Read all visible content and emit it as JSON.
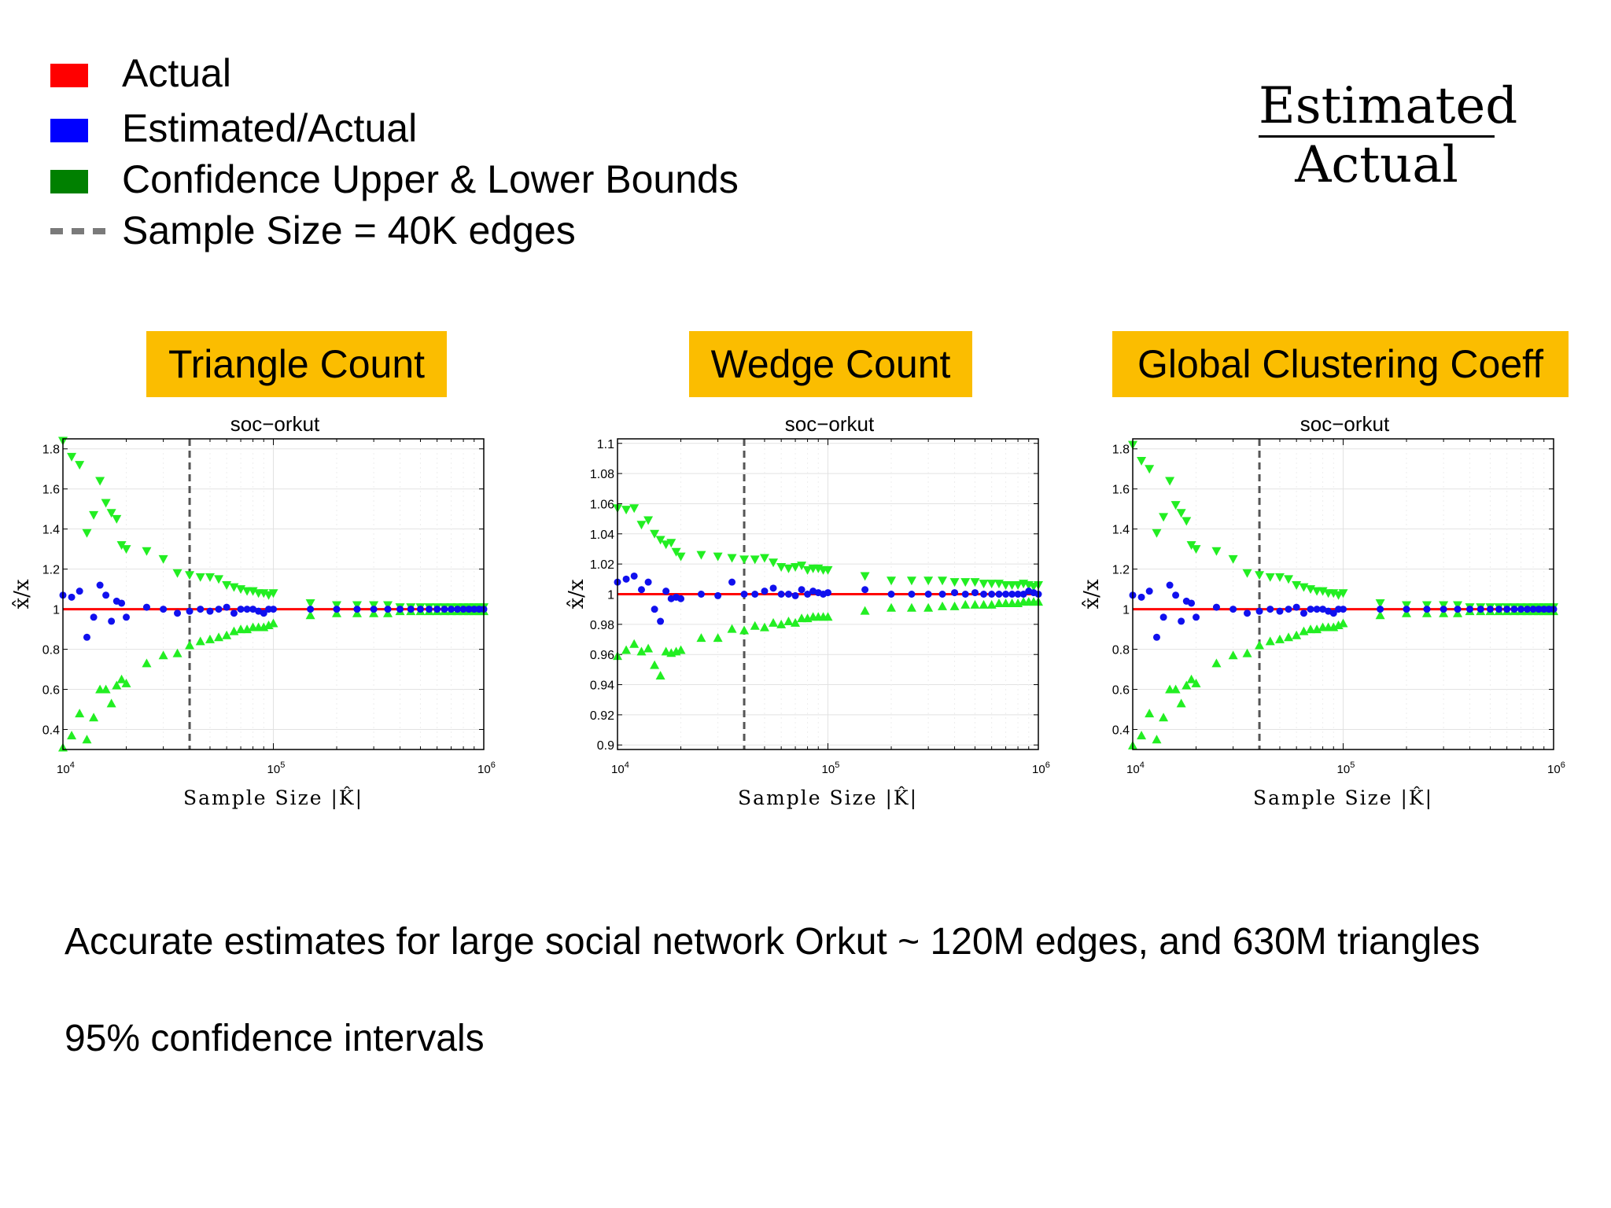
{
  "legend": [
    {
      "label": "Actual",
      "color": "#ff0000",
      "kind": "swatch"
    },
    {
      "label": "Estimated/Actual",
      "color": "#0000ff",
      "kind": "swatch"
    },
    {
      "label": "Confidence Upper & Lower Bounds",
      "color": "#008000",
      "kind": "swatch"
    },
    {
      "label": "Sample Size = 40K edges",
      "color": "#7a7a7a",
      "kind": "dash"
    }
  ],
  "formula": {
    "numerator": "Estimated",
    "denominator": "Actual"
  },
  "panels": [
    {
      "heading": "Triangle Count"
    },
    {
      "heading": "Wedge Count"
    },
    {
      "heading": "Global Clustering Coeff"
    }
  ],
  "footer": {
    "line1": "Accurate estimates for large social network Orkut ~ 120M edges, and 630M triangles",
    "line2": "95% confidence intervals"
  },
  "chart_data": [
    {
      "type": "scatter",
      "title": "soc−orkut",
      "xlabel": "Sample Size |K̂|",
      "ylabel": "x̂/x",
      "xscale": "log",
      "xlim": [
        10000,
        1000000
      ],
      "ylim": [
        0.3,
        1.85
      ],
      "xticks": [
        "10^4",
        "10^5",
        "10^6"
      ],
      "yticks": [
        0.4,
        0.6,
        0.8,
        1,
        1.2,
        1.4,
        1.6,
        1.8
      ],
      "ytick_labels": [
        "0.4",
        "0.6",
        "0.8",
        "1",
        "1.2",
        "1.4",
        "1.6",
        "1.8"
      ],
      "reference_vline": 40000,
      "actual": 1,
      "x": [
        10000,
        11000,
        12000,
        13000,
        14000,
        15000,
        16000,
        17000,
        18000,
        19000,
        20000,
        25000,
        30000,
        35000,
        40000,
        45000,
        50000,
        55000,
        60000,
        65000,
        70000,
        75000,
        80000,
        85000,
        90000,
        95000,
        100000,
        150000,
        200000,
        250000,
        300000,
        350000,
        400000,
        450000,
        500000,
        550000,
        600000,
        650000,
        700000,
        750000,
        800000,
        850000,
        900000,
        950000,
        1000000
      ],
      "estimated": [
        1.07,
        1.06,
        1.09,
        0.86,
        0.96,
        1.12,
        1.07,
        0.94,
        1.04,
        1.03,
        0.96,
        1.01,
        1.0,
        0.98,
        0.99,
        1.0,
        0.99,
        1.0,
        1.01,
        0.98,
        1.0,
        1.0,
        1.0,
        0.99,
        0.98,
        1.0,
        1.0,
        1.0,
        1.0,
        1.0,
        1.0,
        1.0,
        1.0,
        1.0,
        1.0,
        1.0,
        1.0,
        1.0,
        1.0,
        1.0,
        1.0,
        1.0,
        1.0,
        1.0,
        1.0
      ],
      "upper": [
        1.84,
        1.76,
        1.72,
        1.38,
        1.47,
        1.64,
        1.53,
        1.48,
        1.45,
        1.32,
        1.3,
        1.29,
        1.25,
        1.18,
        1.17,
        1.16,
        1.16,
        1.15,
        1.12,
        1.11,
        1.1,
        1.09,
        1.09,
        1.08,
        1.08,
        1.07,
        1.08,
        1.03,
        1.02,
        1.02,
        1.02,
        1.02,
        1.01,
        1.01,
        1.01,
        1.01,
        1.01,
        1.01,
        1.01,
        1.01,
        1.01,
        1.01,
        1.01,
        1.01,
        1.01
      ],
      "lower": [
        0.31,
        0.37,
        0.48,
        0.35,
        0.46,
        0.6,
        0.6,
        0.53,
        0.62,
        0.65,
        0.63,
        0.73,
        0.77,
        0.78,
        0.82,
        0.84,
        0.85,
        0.86,
        0.87,
        0.89,
        0.9,
        0.9,
        0.91,
        0.91,
        0.91,
        0.92,
        0.93,
        0.97,
        0.98,
        0.98,
        0.98,
        0.98,
        0.99,
        0.99,
        0.99,
        0.99,
        0.99,
        0.99,
        0.99,
        0.99,
        0.99,
        0.99,
        0.99,
        0.99,
        0.99
      ]
    },
    {
      "type": "scatter",
      "title": "soc−orkut",
      "xlabel": "Sample Size |K̂|",
      "ylabel": "x̂/x",
      "xscale": "log",
      "xlim": [
        10000,
        1000000
      ],
      "ylim": [
        0.897,
        1.103
      ],
      "xticks": [
        "10^4",
        "10^5",
        "10^6"
      ],
      "yticks": [
        0.9,
        0.92,
        0.94,
        0.96,
        0.98,
        1,
        1.02,
        1.04,
        1.06,
        1.08,
        1.1
      ],
      "ytick_labels": [
        "0.9",
        "0.92",
        "0.94",
        "0.96",
        "0.98",
        "1",
        "1.02",
        "1.04",
        "1.06",
        "1.08",
        "1.1"
      ],
      "reference_vline": 40000,
      "actual": 1,
      "x": [
        10000,
        11000,
        12000,
        13000,
        14000,
        15000,
        16000,
        17000,
        18000,
        19000,
        20000,
        25000,
        30000,
        35000,
        40000,
        45000,
        50000,
        55000,
        60000,
        65000,
        70000,
        75000,
        80000,
        85000,
        90000,
        95000,
        100000,
        150000,
        200000,
        250000,
        300000,
        350000,
        400000,
        450000,
        500000,
        550000,
        600000,
        650000,
        700000,
        750000,
        800000,
        850000,
        900000,
        950000,
        1000000
      ],
      "estimated": [
        1.008,
        1.01,
        1.012,
        1.003,
        1.008,
        0.99,
        0.982,
        1.002,
        0.997,
        0.998,
        0.997,
        1.0,
        0.999,
        1.008,
        1.0,
        1.0,
        1.002,
        1.004,
        1.0,
        1.0,
        0.999,
        1.003,
        1.0,
        1.002,
        1.001,
        1.0,
        1.001,
        1.003,
        1.0,
        1.0,
        1.0,
        1.0,
        1.001,
        1.0,
        1.001,
        1.0,
        1.0,
        1.0,
        1.0,
        1.0,
        1.0,
        1.0,
        1.002,
        1.001,
        1.0
      ],
      "upper": [
        1.057,
        1.056,
        1.057,
        1.046,
        1.049,
        1.04,
        1.036,
        1.033,
        1.034,
        1.028,
        1.025,
        1.026,
        1.025,
        1.024,
        1.023,
        1.023,
        1.024,
        1.021,
        1.018,
        1.017,
        1.018,
        1.019,
        1.016,
        1.017,
        1.017,
        1.016,
        1.016,
        1.012,
        1.009,
        1.009,
        1.009,
        1.009,
        1.008,
        1.008,
        1.008,
        1.007,
        1.007,
        1.007,
        1.006,
        1.006,
        1.006,
        1.007,
        1.006,
        1.005,
        1.006
      ],
      "lower": [
        0.959,
        0.963,
        0.967,
        0.962,
        0.964,
        0.953,
        0.946,
        0.962,
        0.961,
        0.962,
        0.963,
        0.971,
        0.971,
        0.977,
        0.976,
        0.979,
        0.978,
        0.981,
        0.98,
        0.982,
        0.981,
        0.984,
        0.984,
        0.985,
        0.985,
        0.985,
        0.985,
        0.989,
        0.991,
        0.991,
        0.991,
        0.992,
        0.992,
        0.993,
        0.993,
        0.993,
        0.993,
        0.994,
        0.994,
        0.994,
        0.994,
        0.995,
        0.995,
        0.995,
        0.995
      ]
    },
    {
      "type": "scatter",
      "title": "soc−orkut",
      "xlabel": "Sample Size |K̂|",
      "ylabel": "x̂/x",
      "xscale": "log",
      "xlim": [
        10000,
        1000000
      ],
      "ylim": [
        0.3,
        1.85
      ],
      "xticks": [
        "10^4",
        "10^5",
        "10^6"
      ],
      "yticks": [
        0.4,
        0.6,
        0.8,
        1,
        1.2,
        1.4,
        1.6,
        1.8
      ],
      "ytick_labels": [
        "0.4",
        "0.6",
        "0.8",
        "1",
        "1.2",
        "1.4",
        "1.6",
        "1.8"
      ],
      "reference_vline": 40000,
      "actual": 1,
      "x": [
        10000,
        11000,
        12000,
        13000,
        14000,
        15000,
        16000,
        17000,
        18000,
        19000,
        20000,
        25000,
        30000,
        35000,
        40000,
        45000,
        50000,
        55000,
        60000,
        65000,
        70000,
        75000,
        80000,
        85000,
        90000,
        95000,
        100000,
        150000,
        200000,
        250000,
        300000,
        350000,
        400000,
        450000,
        500000,
        550000,
        600000,
        650000,
        700000,
        750000,
        800000,
        850000,
        900000,
        950000,
        1000000
      ],
      "estimated": [
        1.07,
        1.06,
        1.09,
        0.86,
        0.96,
        1.12,
        1.07,
        0.94,
        1.04,
        1.03,
        0.96,
        1.01,
        1.0,
        0.98,
        0.99,
        1.0,
        0.99,
        1.0,
        1.01,
        0.98,
        1.0,
        1.0,
        1.0,
        0.99,
        0.98,
        1.0,
        1.0,
        1.0,
        1.0,
        1.0,
        1.0,
        1.0,
        1.0,
        1.0,
        1.0,
        1.0,
        1.0,
        1.0,
        1.0,
        1.0,
        1.0,
        1.0,
        1.0,
        1.0,
        1.0
      ],
      "upper": [
        1.82,
        1.74,
        1.7,
        1.38,
        1.46,
        1.64,
        1.52,
        1.48,
        1.44,
        1.32,
        1.3,
        1.29,
        1.25,
        1.18,
        1.17,
        1.16,
        1.16,
        1.15,
        1.12,
        1.11,
        1.1,
        1.09,
        1.09,
        1.08,
        1.08,
        1.07,
        1.08,
        1.03,
        1.02,
        1.02,
        1.02,
        1.02,
        1.01,
        1.01,
        1.01,
        1.01,
        1.01,
        1.01,
        1.01,
        1.01,
        1.01,
        1.01,
        1.01,
        1.01,
        1.01
      ],
      "lower": [
        0.32,
        0.37,
        0.48,
        0.35,
        0.46,
        0.6,
        0.6,
        0.53,
        0.62,
        0.65,
        0.63,
        0.73,
        0.77,
        0.78,
        0.82,
        0.84,
        0.85,
        0.86,
        0.87,
        0.89,
        0.9,
        0.9,
        0.91,
        0.91,
        0.91,
        0.92,
        0.93,
        0.97,
        0.98,
        0.98,
        0.98,
        0.98,
        0.99,
        0.99,
        0.99,
        0.99,
        0.99,
        0.99,
        0.99,
        0.99,
        0.99,
        0.99,
        0.99,
        0.99,
        0.99
      ]
    }
  ]
}
